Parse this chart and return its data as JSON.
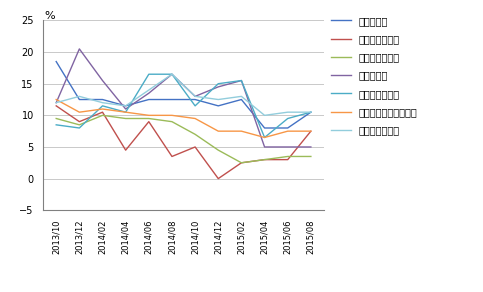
{
  "ylabel_text": "%",
  "ylim": [
    -5,
    25
  ],
  "yticks": [
    -5,
    0,
    5,
    10,
    15,
    20,
    25
  ],
  "x_labels": [
    "2013/10",
    "2013/12",
    "2014/02",
    "2014/04",
    "2014/06",
    "2014/08",
    "2014/10",
    "2014/12",
    "2015/02",
    "2015/04",
    "2015/06",
    "2015/08"
  ],
  "series": [
    {
      "name": "金属制品业",
      "color": "#4472C4",
      "values": [
        18.5,
        12.5,
        12.5,
        11.5,
        12.5,
        12.5,
        12.5,
        11.5,
        12.5,
        8.0,
        8.0,
        10.5
      ]
    },
    {
      "name": "专用设备制造业",
      "color": "#C0504D",
      "values": [
        11.5,
        9.0,
        10.5,
        4.5,
        9.0,
        3.5,
        5.0,
        0.0,
        2.5,
        3.0,
        3.0,
        7.5
      ]
    },
    {
      "name": "通用设备制造业",
      "color": "#9BBB59",
      "values": [
        9.5,
        8.5,
        10.0,
        9.5,
        9.5,
        9.0,
        7.0,
        4.5,
        2.5,
        3.0,
        3.5,
        3.5
      ]
    },
    {
      "name": "汽车制造业",
      "color": "#8064A2",
      "values": [
        12.0,
        20.5,
        15.5,
        11.0,
        13.5,
        16.5,
        13.0,
        14.5,
        15.5,
        5.0,
        5.0,
        5.0
      ]
    },
    {
      "name": "运输设备制造业",
      "color": "#4BACC6",
      "values": [
        8.5,
        8.0,
        11.5,
        10.5,
        16.5,
        16.5,
        11.5,
        15.0,
        15.5,
        6.5,
        9.5,
        10.5
      ]
    },
    {
      "name": "电气机械及器材制造业",
      "color": "#F79646",
      "values": [
        12.5,
        10.5,
        11.0,
        10.5,
        10.0,
        10.0,
        9.5,
        7.5,
        7.5,
        6.5,
        7.5,
        7.5
      ]
    },
    {
      "name": "电子设备制造业",
      "color": "#92CDDC",
      "values": [
        12.0,
        13.0,
        12.0,
        11.5,
        14.0,
        16.5,
        13.0,
        12.5,
        13.0,
        10.0,
        10.5,
        10.5
      ]
    }
  ],
  "background_color": "#FFFFFF",
  "grid_color": "#C0C0C0",
  "figsize": [
    4.83,
    2.92
  ],
  "dpi": 100
}
